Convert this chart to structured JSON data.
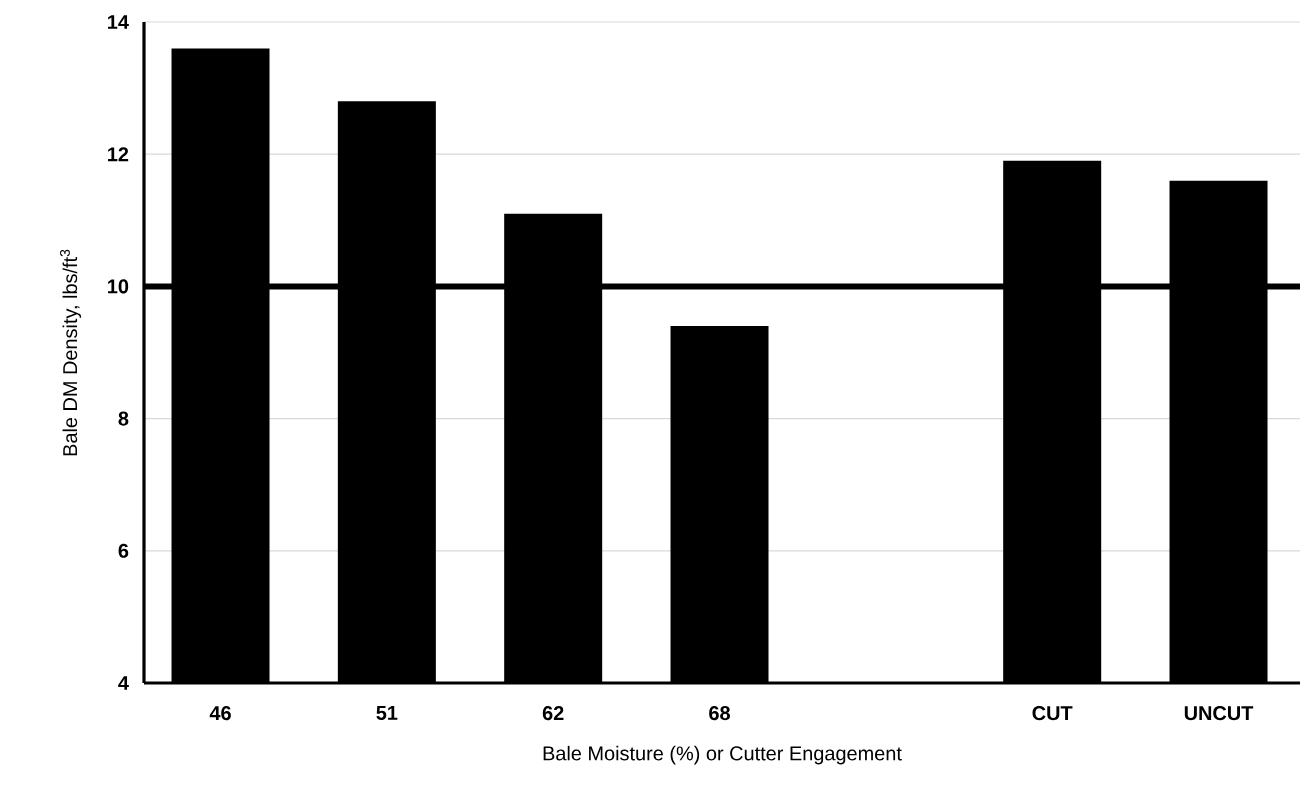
{
  "chart_data": {
    "type": "bar",
    "xlabel": "Bale Moisture (%) or Cutter Engagement",
    "ylabel": "Bale DM Density, lbs/ft$^{3}$",
    "categories": [
      "46",
      "51",
      "62",
      "68",
      null,
      "CUT",
      "UNCUT"
    ],
    "values": [
      13.6,
      12.8,
      11.1,
      9.4,
      null,
      11.9,
      11.6
    ],
    "color": "#000000",
    "ylim": [
      4,
      14
    ],
    "yticks": [
      4,
      6,
      8,
      10,
      12,
      14
    ],
    "grid": "y",
    "ref_lines": [
      {
        "axis": "y",
        "value": 10,
        "color": "#000000"
      }
    ]
  }
}
